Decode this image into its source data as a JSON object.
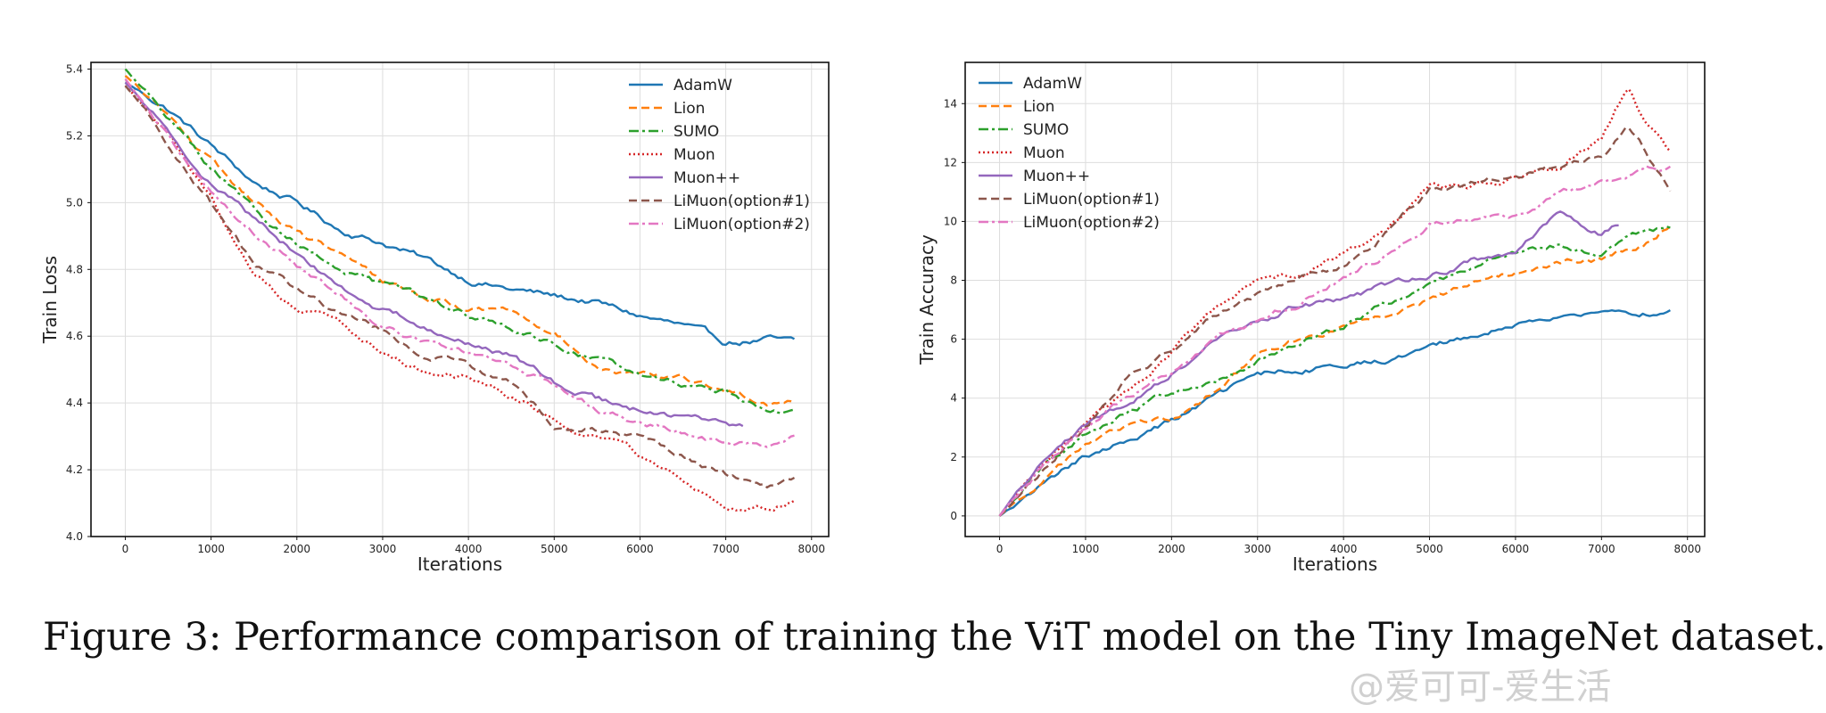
{
  "caption": "Figure 3: Performance comparison of training the ViT model on the Tiny ImageNet dataset.",
  "watermark": "@爱可可-爱生活",
  "styles": {
    "AdamW": {
      "color": "#1f77b4",
      "dash": ""
    },
    "Lion": {
      "color": "#ff7f0e",
      "dash": "9,5"
    },
    "SUMO": {
      "color": "#2ca02c",
      "dash": "11,4,3,4"
    },
    "Muon": {
      "color": "#d62728",
      "dash": "2,3"
    },
    "Muon++": {
      "color": "#9467bd",
      "dash": ""
    },
    "LiMuon(option#1)": {
      "color": "#8c564b",
      "dash": "9,5"
    },
    "LiMuon(option#2)": {
      "color": "#e377c2",
      "dash": "11,4,3,4"
    }
  },
  "chart_data": [
    {
      "type": "line",
      "xlabel": "Iterations",
      "ylabel": "Train Loss",
      "xlim": [
        -400,
        8200
      ],
      "ylim": [
        4.0,
        5.42
      ],
      "xticks": [
        0,
        1000,
        2000,
        3000,
        4000,
        5000,
        6000,
        7000,
        8000
      ],
      "yticks": [
        4.0,
        4.2,
        4.4,
        4.6,
        4.8,
        5.0,
        5.2,
        5.4
      ],
      "ytick_decimals": 1,
      "grid": true,
      "legend_position": "top-right",
      "noise": 0.014,
      "series": [
        {
          "name": "AdamW",
          "x": [
            0,
            500,
            1000,
            1500,
            2000,
            2500,
            3000,
            3500,
            4000,
            4500,
            5000,
            5500,
            6000,
            6500,
            7000,
            7500,
            7800
          ],
          "values": [
            5.36,
            5.28,
            5.17,
            5.06,
            5.0,
            4.92,
            4.88,
            4.83,
            4.77,
            4.74,
            4.72,
            4.7,
            4.66,
            4.63,
            4.58,
            4.59,
            4.58
          ]
        },
        {
          "name": "Lion",
          "x": [
            0,
            500,
            1000,
            1500,
            2000,
            2500,
            3000,
            3500,
            4000,
            4500,
            5000,
            5500,
            6000,
            6500,
            7000,
            7500,
            7800
          ],
          "values": [
            5.38,
            5.26,
            5.12,
            5.0,
            4.91,
            4.84,
            4.77,
            4.72,
            4.68,
            4.68,
            4.62,
            4.5,
            4.48,
            4.47,
            4.44,
            4.4,
            4.41
          ]
        },
        {
          "name": "SUMO",
          "x": [
            0,
            500,
            1000,
            1500,
            2000,
            2500,
            3000,
            3500,
            4000,
            4500,
            5000,
            5500,
            6000,
            6500,
            7000,
            7500,
            7800
          ],
          "values": [
            5.4,
            5.26,
            5.1,
            4.98,
            4.88,
            4.8,
            4.75,
            4.71,
            4.66,
            4.62,
            4.58,
            4.53,
            4.49,
            4.46,
            4.44,
            4.38,
            4.37
          ]
        },
        {
          "name": "Muon",
          "x": [
            0,
            500,
            1000,
            1500,
            2000,
            2500,
            3000,
            3500,
            4000,
            4500,
            5000,
            5500,
            6000,
            6500,
            7000,
            7500,
            7800
          ],
          "values": [
            5.35,
            5.2,
            5.01,
            4.79,
            4.69,
            4.64,
            4.56,
            4.5,
            4.47,
            4.42,
            4.36,
            4.29,
            4.24,
            4.17,
            4.1,
            4.08,
            4.11
          ]
        },
        {
          "name": "Muon++",
          "x": [
            0,
            500,
            1000,
            1500,
            2000,
            2500,
            3000,
            3500,
            4000,
            4500,
            5000,
            5500,
            6000,
            6500,
            7000,
            7200
          ],
          "values": [
            5.36,
            5.22,
            5.06,
            4.95,
            4.85,
            4.75,
            4.68,
            4.63,
            4.58,
            4.54,
            4.46,
            4.41,
            4.38,
            4.36,
            4.33,
            4.32
          ]
        },
        {
          "name": "LiMuon(option#1)",
          "x": [
            0,
            500,
            1000,
            1500,
            2000,
            2500,
            3000,
            3500,
            4000,
            4500,
            5000,
            5500,
            6000,
            6500,
            7000,
            7500,
            7800
          ],
          "values": [
            5.35,
            5.18,
            5.0,
            4.82,
            4.74,
            4.67,
            4.62,
            4.55,
            4.51,
            4.46,
            4.34,
            4.32,
            4.3,
            4.24,
            4.18,
            4.15,
            4.16
          ]
        },
        {
          "name": "LiMuon(option#2)",
          "x": [
            0,
            500,
            1000,
            1500,
            2000,
            2500,
            3000,
            3500,
            4000,
            4500,
            5000,
            5500,
            6000,
            6500,
            7000,
            7500,
            7800
          ],
          "values": [
            5.37,
            5.2,
            5.03,
            4.9,
            4.81,
            4.72,
            4.64,
            4.59,
            4.55,
            4.51,
            4.46,
            4.38,
            4.34,
            4.31,
            4.28,
            4.27,
            4.29
          ]
        }
      ]
    },
    {
      "type": "line",
      "xlabel": "Iterations",
      "ylabel": "Train Accuracy",
      "xlim": [
        -400,
        8200
      ],
      "ylim": [
        -0.7,
        15.4
      ],
      "xticks": [
        0,
        1000,
        2000,
        3000,
        4000,
        5000,
        6000,
        7000,
        8000
      ],
      "yticks": [
        0,
        2,
        4,
        6,
        8,
        10,
        12,
        14
      ],
      "ytick_decimals": 0,
      "grid": true,
      "legend_position": "top-left",
      "noise": 0.15,
      "series": [
        {
          "name": "AdamW",
          "x": [
            0,
            500,
            1000,
            1500,
            2000,
            2500,
            3000,
            3500,
            4000,
            4500,
            5000,
            5500,
            6000,
            6500,
            7000,
            7500,
            7800
          ],
          "values": [
            0.0,
            1.0,
            2.0,
            2.6,
            3.2,
            4.0,
            4.8,
            5.0,
            5.1,
            5.3,
            5.8,
            6.1,
            6.5,
            6.8,
            6.9,
            6.9,
            7.0
          ]
        },
        {
          "name": "Lion",
          "x": [
            0,
            500,
            1000,
            1500,
            2000,
            2500,
            3000,
            3500,
            4000,
            4500,
            5000,
            5500,
            6000,
            6500,
            7000,
            7500,
            7800
          ],
          "values": [
            0.0,
            1.2,
            2.4,
            3.1,
            3.3,
            4.2,
            5.4,
            6.0,
            6.4,
            6.9,
            7.3,
            7.9,
            8.2,
            8.6,
            8.7,
            9.2,
            9.9
          ]
        },
        {
          "name": "SUMO",
          "x": [
            0,
            500,
            1000,
            1500,
            2000,
            2500,
            3000,
            3500,
            4000,
            4500,
            5000,
            5500,
            6000,
            6500,
            7000,
            7500,
            7800
          ],
          "values": [
            0.0,
            1.6,
            2.8,
            3.5,
            4.2,
            4.5,
            5.3,
            5.9,
            6.5,
            7.2,
            7.8,
            8.4,
            8.9,
            9.2,
            8.9,
            9.6,
            9.8
          ]
        },
        {
          "name": "Muon",
          "x": [
            0,
            500,
            1000,
            1500,
            2000,
            2500,
            3000,
            3500,
            4000,
            4500,
            5000,
            5500,
            6000,
            6500,
            7000,
            7300,
            7500,
            7800
          ],
          "values": [
            0.0,
            1.7,
            3.1,
            4.2,
            5.6,
            7.0,
            7.9,
            8.2,
            8.9,
            9.6,
            11.2,
            11.2,
            11.5,
            11.9,
            12.8,
            14.6,
            13.4,
            12.3
          ]
        },
        {
          "name": "Muon++",
          "x": [
            0,
            500,
            1000,
            1500,
            2000,
            2500,
            3000,
            3500,
            4000,
            4500,
            5000,
            5500,
            6000,
            6500,
            7000,
            7200
          ],
          "values": [
            0.0,
            2.0,
            3.1,
            3.8,
            4.8,
            5.9,
            6.6,
            7.2,
            7.3,
            7.8,
            8.1,
            8.7,
            9.0,
            10.4,
            9.6,
            9.9
          ]
        },
        {
          "name": "LiMuon(option#1)",
          "x": [
            0,
            500,
            1000,
            1500,
            2000,
            2500,
            3000,
            3500,
            4000,
            4500,
            5000,
            5500,
            6000,
            6500,
            7000,
            7300,
            7500,
            7800
          ],
          "values": [
            0.0,
            1.6,
            3.0,
            4.7,
            5.6,
            6.8,
            7.5,
            8.2,
            8.5,
            9.6,
            11.1,
            11.4,
            11.6,
            11.8,
            12.2,
            13.2,
            12.4,
            11.1
          ]
        },
        {
          "name": "LiMuon(option#2)",
          "x": [
            0,
            500,
            1000,
            1500,
            2000,
            2500,
            3000,
            3500,
            4000,
            4500,
            5000,
            5500,
            6000,
            6500,
            7000,
            7500,
            7800
          ],
          "values": [
            0.0,
            1.7,
            3.0,
            4.1,
            4.8,
            6.0,
            6.7,
            7.3,
            8.1,
            8.9,
            10.0,
            10.2,
            10.2,
            10.9,
            11.3,
            11.8,
            11.8
          ]
        }
      ]
    }
  ]
}
